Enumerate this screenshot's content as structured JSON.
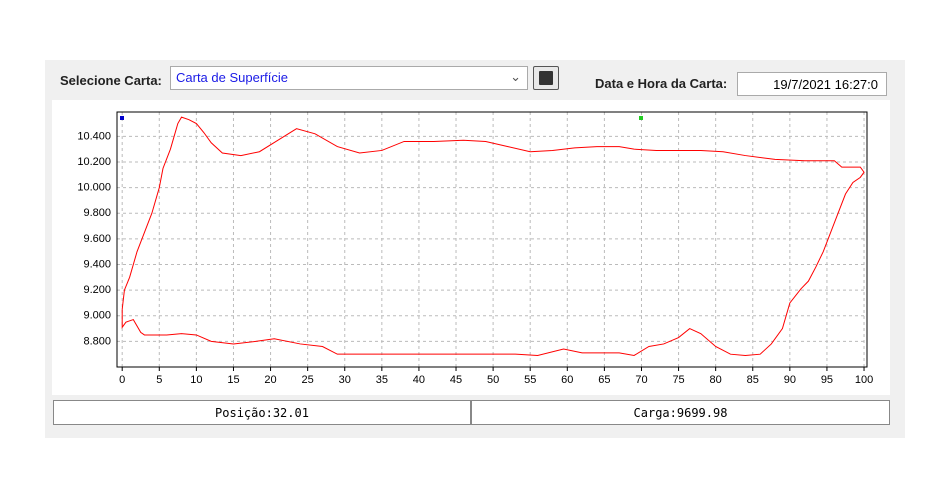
{
  "toolbar": {
    "select_label": "Selecione Carta:",
    "select_value": "Carta de Superfície",
    "date_label": "Data e Hora da Carta:",
    "date_value": "19/7/2021 16:27:0"
  },
  "chart_data": {
    "type": "line",
    "grid": true,
    "xlim": [
      -0.7,
      100.4
    ],
    "ylim": [
      8600,
      10590
    ],
    "xticks": [
      0,
      5,
      10,
      15,
      20,
      25,
      30,
      35,
      40,
      45,
      50,
      55,
      60,
      65,
      70,
      75,
      80,
      85,
      90,
      95,
      100
    ],
    "yticks": [
      {
        "value": 8800,
        "label": "8.800"
      },
      {
        "value": 9000,
        "label": "9.000"
      },
      {
        "value": 9200,
        "label": "9.200"
      },
      {
        "value": 9400,
        "label": "9.400"
      },
      {
        "value": 9600,
        "label": "9.600"
      },
      {
        "value": 9800,
        "label": "9.800"
      },
      {
        "value": 10000,
        "label": "10.000"
      },
      {
        "value": 10200,
        "label": "10.200"
      },
      {
        "value": 10400,
        "label": "10.400"
      }
    ],
    "series": [
      {
        "color": "#ff0000",
        "x": [
          0,
          0.3,
          1,
          2,
          3,
          4,
          5,
          5.5,
          6.5,
          7.5,
          8,
          9,
          10,
          11,
          12,
          13.5,
          16,
          18.5,
          21,
          23.5,
          26,
          29,
          32,
          35,
          38,
          42,
          46,
          49,
          52,
          55,
          58,
          61,
          64,
          67,
          69,
          72,
          78,
          81,
          84,
          88,
          92,
          96,
          97,
          98,
          99.5,
          100,
          99.5,
          98.5,
          97.5,
          96.5,
          95.5,
          94.5,
          93.5,
          92.5,
          91.5,
          90,
          89,
          87.5,
          86,
          84,
          82,
          80,
          78,
          76.5,
          75,
          73,
          71,
          69,
          67,
          65,
          62,
          59.5,
          56,
          53,
          45,
          35,
          29,
          27,
          24,
          20.5,
          18,
          15,
          12,
          10,
          8,
          6,
          3,
          2.5,
          1.5,
          0.5,
          0,
          0
        ],
        "values": [
          9050,
          9200,
          9300,
          9500,
          9650,
          9800,
          10000,
          10150,
          10300,
          10500,
          10550,
          10530,
          10500,
          10430,
          10350,
          10270,
          10250,
          10280,
          10370,
          10460,
          10420,
          10320,
          10270,
          10290,
          10360,
          10360,
          10370,
          10360,
          10320,
          10280,
          10290,
          10310,
          10320,
          10320,
          10300,
          10290,
          10290,
          10280,
          10250,
          10220,
          10210,
          10210,
          10160,
          10160,
          10160,
          10120,
          10080,
          10040,
          9950,
          9800,
          9650,
          9500,
          9380,
          9270,
          9210,
          9100,
          8900,
          8780,
          8700,
          8690,
          8700,
          8760,
          8860,
          8900,
          8830,
          8780,
          8760,
          8690,
          8710,
          8710,
          8710,
          8740,
          8690,
          8700,
          8700,
          8700,
          8700,
          8760,
          8780,
          8820,
          8800,
          8780,
          8800,
          8850,
          8860,
          8850,
          8850,
          8870,
          8970,
          8950,
          8910,
          9050
        ]
      }
    ]
  },
  "status": {
    "position": "Posição:32.01",
    "load": "Carga:9699.98"
  }
}
